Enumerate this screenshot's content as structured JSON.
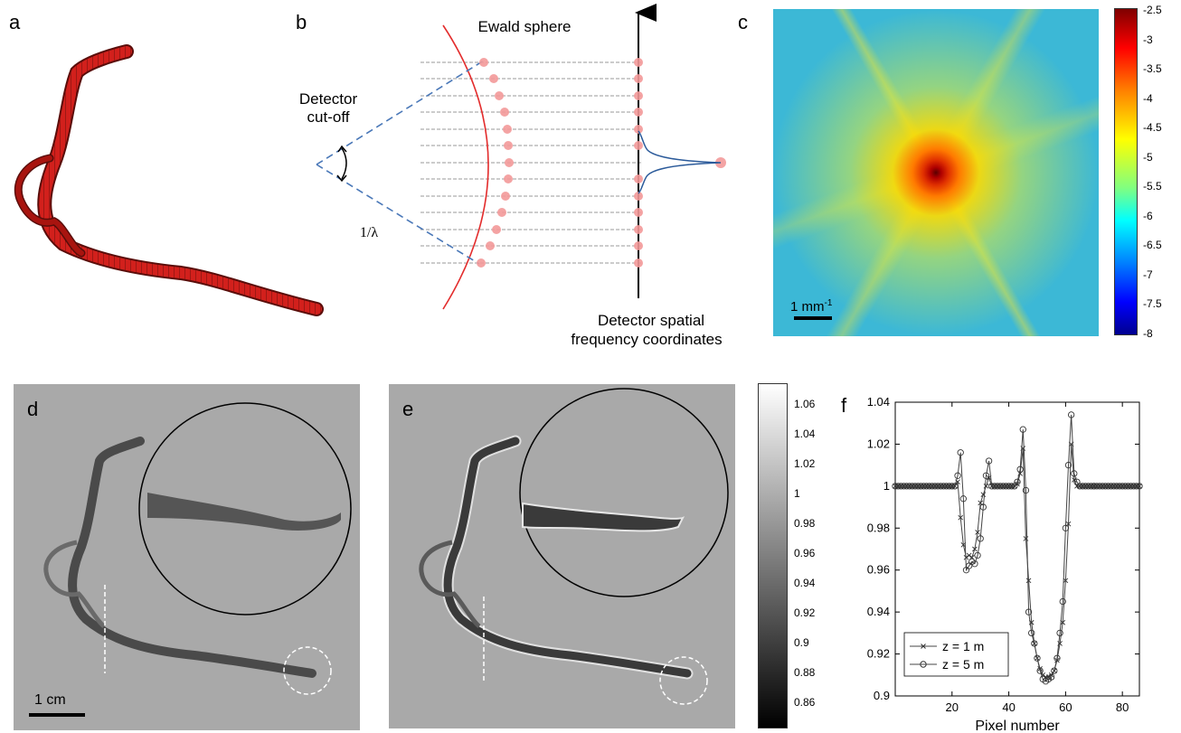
{
  "panels": {
    "a": {
      "label": "a"
    },
    "b": {
      "label": "b",
      "ewald_label": "Ewald sphere",
      "cutoff_line1": "Detector",
      "cutoff_line2": "cut-off",
      "lambda_label": "1/λ",
      "freq_line1": "Detector spatial",
      "freq_line2": "frequency coordinates",
      "colors": {
        "ewald": "#e32d2d",
        "cutoff": "#4a78b8",
        "dot": "#f39a9a"
      }
    },
    "c": {
      "label": "c",
      "scale_label": "1 mm",
      "scale_sup": "-1",
      "colorbar_ticks": [
        "-2.5",
        "-3",
        "-3.5",
        "-4",
        "-4.5",
        "-5",
        "-5.5",
        "-6",
        "-6.5",
        "-7",
        "-7.5",
        "-8"
      ]
    },
    "d": {
      "label": "d",
      "scale_label": "1 cm"
    },
    "e": {
      "label": "e",
      "colorbar_ticks": [
        "1.06",
        "1.04",
        "1.02",
        "1",
        "0.98",
        "0.96",
        "0.94",
        "0.92",
        "0.9",
        "0.88",
        "0.86"
      ]
    },
    "f": {
      "label": "f"
    }
  },
  "chart_data": {
    "type": "line",
    "xlabel": "Pixel number",
    "ylabel": "",
    "xlim": [
      0,
      86
    ],
    "ylim": [
      0.9,
      1.04
    ],
    "xticks": [
      "20",
      "40",
      "60",
      "80"
    ],
    "yticks": [
      "0.9",
      "0.92",
      "0.94",
      "0.96",
      "0.98",
      "1",
      "1.02",
      "1.04"
    ],
    "legend_position": "bottom-left",
    "series": [
      {
        "name": "z = 1 m",
        "marker": "x",
        "x": [
          0,
          20,
          21,
          22,
          23,
          24,
          25,
          26,
          27,
          28,
          29,
          30,
          31,
          32,
          33,
          34,
          35,
          40,
          41,
          42,
          43,
          44,
          45,
          46,
          47,
          48,
          49,
          50,
          51,
          52,
          53,
          54,
          55,
          56,
          57,
          58,
          59,
          60,
          61,
          62,
          63,
          64,
          65,
          70,
          86
        ],
        "y": [
          1,
          1,
          1,
          1.002,
          0.985,
          0.972,
          0.966,
          0.967,
          0.966,
          0.97,
          0.978,
          0.992,
          0.996,
          1,
          1.004,
          1.0,
          1,
          1,
          1,
          1,
          1.001,
          1.006,
          1.018,
          0.975,
          0.955,
          0.935,
          0.925,
          0.918,
          0.913,
          0.91,
          0.909,
          0.909,
          0.91,
          0.912,
          0.917,
          0.925,
          0.935,
          0.955,
          0.982,
          1.02,
          1.003,
          1,
          1,
          1,
          1
        ]
      },
      {
        "name": "z = 5 m",
        "marker": "o",
        "x": [
          0,
          20,
          21,
          22,
          23,
          24,
          25,
          26,
          27,
          28,
          29,
          30,
          31,
          32,
          33,
          34,
          35,
          40,
          41,
          42,
          43,
          44,
          45,
          46,
          47,
          48,
          49,
          50,
          51,
          52,
          53,
          54,
          55,
          56,
          57,
          58,
          59,
          60,
          61,
          62,
          63,
          64,
          65,
          70,
          86
        ],
        "y": [
          1,
          1,
          1,
          1.005,
          1.016,
          0.994,
          0.96,
          0.962,
          0.964,
          0.963,
          0.967,
          0.975,
          0.99,
          1.005,
          1.012,
          1.0,
          1,
          1,
          1,
          1,
          1.002,
          1.008,
          1.027,
          0.998,
          0.94,
          0.93,
          0.925,
          0.918,
          0.912,
          0.908,
          0.907,
          0.908,
          0.909,
          0.912,
          0.918,
          0.93,
          0.945,
          0.98,
          1.01,
          1.034,
          1.006,
          1.002,
          1,
          1,
          1
        ]
      }
    ]
  }
}
